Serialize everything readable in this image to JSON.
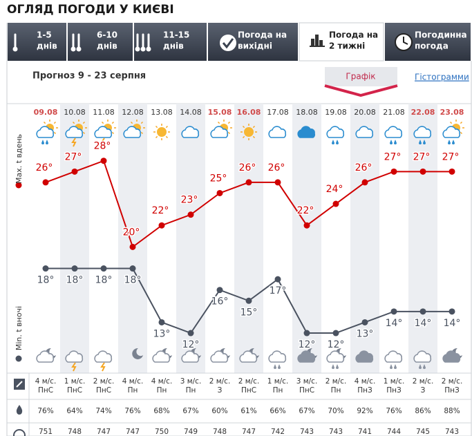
{
  "header": {
    "title": "ОГЛЯД ПОГОДИ У КИЄВІ"
  },
  "tabs": [
    {
      "top": "1-5",
      "bottom": "днів"
    },
    {
      "top": "6-10",
      "bottom": "днів"
    },
    {
      "top": "11-15",
      "bottom": "днів"
    },
    {
      "top": "Погода на",
      "bottom": "вихідні"
    },
    {
      "top": "Погода на",
      "bottom": "2 тижні"
    },
    {
      "top": "Погодинна",
      "bottom": "погода"
    }
  ],
  "forecast_title": "Прогноз 9 - 23 серпня",
  "view_tabs": [
    "Графік",
    "Гістограмми"
  ],
  "chart_data": {
    "type": "line",
    "categories": [
      "09.08",
      "10.08",
      "11.08",
      "12.08",
      "13.08",
      "14.08",
      "15.08",
      "16.08",
      "17.08",
      "18.08",
      "19.08",
      "20.08",
      "21.08",
      "22.08",
      "23.08"
    ],
    "weekend": [
      true,
      false,
      false,
      false,
      false,
      false,
      true,
      true,
      false,
      false,
      false,
      false,
      false,
      true,
      true
    ],
    "weekend_color": "#d04a4a",
    "ylim": [
      11,
      31
    ],
    "series": [
      {
        "name": "Max. t вдень",
        "color": "#d00000",
        "values": [
          26,
          27,
          28,
          20,
          22,
          23,
          25,
          26,
          26,
          22,
          24,
          26,
          27,
          27,
          27
        ],
        "value_labels": [
          "26°",
          "27°",
          "28°",
          "20°",
          "22°",
          "23°",
          "25°",
          "26°",
          "26°",
          "22°",
          "24°",
          "26°",
          "27°",
          "27°",
          "27°"
        ]
      },
      {
        "name": "Min. t вночі",
        "color": "#4a5260",
        "values": [
          18,
          18,
          18,
          18,
          13,
          12,
          16,
          15,
          17,
          12,
          12,
          13,
          14,
          14,
          14
        ],
        "value_labels": [
          "18°",
          "18°",
          "18°",
          "18°",
          "13°",
          "12°",
          "16°",
          "15°",
          "17°",
          "12°",
          "12°",
          "13°",
          "14°",
          "14°",
          "14°"
        ]
      }
    ]
  },
  "table": {
    "wind": [
      [
        "4 м/с.",
        "ПнС"
      ],
      [
        "1 м/с.",
        "ПнС"
      ],
      [
        "2 м/с.",
        "ПнС"
      ],
      [
        "4 м/с.",
        "Пн"
      ],
      [
        "4 м/с.",
        "Пн"
      ],
      [
        "3 м/с.",
        "Пн"
      ],
      [
        "2 м/с.",
        "З"
      ],
      [
        "2 м/с.",
        "ПнС"
      ],
      [
        "1 м/с.",
        "Пн"
      ],
      [
        "3 м/с.",
        "ПнС"
      ],
      [
        "2 м/с.",
        "Пн"
      ],
      [
        "4 м/с.",
        "ПнЗ"
      ],
      [
        "1 м/с.",
        "ПнЗ"
      ],
      [
        "2 м/с.",
        "З"
      ],
      [
        "2 м/с.",
        "ПнЗ"
      ]
    ],
    "humidity": [
      "76%",
      "64%",
      "74%",
      "76%",
      "68%",
      "67%",
      "60%",
      "61%",
      "66%",
      "67%",
      "70%",
      "92%",
      "76%",
      "86%",
      "88%"
    ],
    "pressure": [
      "751",
      "748",
      "747",
      "747",
      "750",
      "749",
      "748",
      "747",
      "742",
      "743",
      "743",
      "741",
      "744",
      "745",
      "743"
    ]
  }
}
